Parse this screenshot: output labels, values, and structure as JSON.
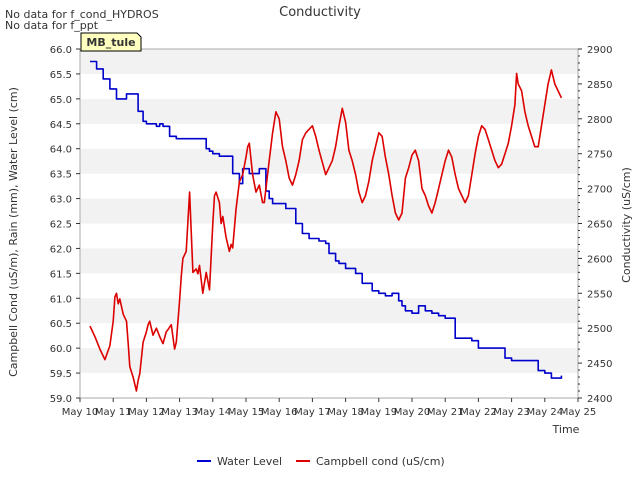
{
  "notes": [
    "No data for f_cond_HYDROS",
    "No data for f_ppt"
  ],
  "badge": "MB_tule",
  "chart_data": {
    "type": "line",
    "title": "Conductivity",
    "xlabel": "Time",
    "ylabel_left": "Campbell Cond (uS/m), Rain (mm), Water Level (cm)",
    "ylabel_right": "Conductivity (uS/cm)",
    "x_ticks": [
      "May 10",
      "May 11",
      "May 12",
      "May 13",
      "May 14",
      "May 15",
      "May 16",
      "May 17",
      "May 18",
      "May 19",
      "May 20",
      "May 21",
      "May 22",
      "May 23",
      "May 24",
      "May 25"
    ],
    "xlim": [
      10,
      25
    ],
    "ylim_left": [
      59.0,
      66.0
    ],
    "y_ticks_left": [
      "59.0",
      "59.5",
      "60.0",
      "60.5",
      "61.0",
      "61.5",
      "62.0",
      "62.5",
      "63.0",
      "63.5",
      "64.0",
      "64.5",
      "65.0",
      "65.5",
      "66.0"
    ],
    "ylim_right": [
      2400,
      2900
    ],
    "y_ticks_right": [
      "2400",
      "2450",
      "2500",
      "2550",
      "2600",
      "2650",
      "2700",
      "2750",
      "2800",
      "2850",
      "2900"
    ],
    "grid_bands": true,
    "legend_position": "bottom-center",
    "series": [
      {
        "name": "Water Level",
        "color": "#0000cc",
        "axis": "left",
        "x": [
          10.3,
          10.5,
          10.7,
          10.9,
          11.1,
          11.2,
          11.4,
          11.5,
          11.75,
          11.9,
          12.0,
          12.3,
          12.4,
          12.5,
          12.7,
          12.9,
          13.0,
          13.5,
          13.8,
          13.9,
          14.0,
          14.2,
          14.6,
          14.8,
          14.9,
          15.1,
          15.2,
          15.4,
          15.6,
          15.7,
          15.8,
          16.0,
          16.2,
          16.5,
          16.7,
          16.9,
          17.0,
          17.2,
          17.4,
          17.5,
          17.7,
          17.8,
          18.0,
          18.3,
          18.5,
          18.8,
          19.0,
          19.2,
          19.4,
          19.6,
          19.7,
          19.8,
          20.0,
          20.2,
          20.4,
          20.6,
          20.8,
          21.0,
          21.3,
          21.4,
          21.6,
          21.8,
          22.0,
          22.2,
          22.5,
          22.8,
          23.0,
          23.2,
          23.5,
          23.8,
          24.0,
          24.2,
          24.5
        ],
        "y": [
          65.75,
          65.6,
          65.4,
          65.2,
          65.0,
          65.0,
          65.1,
          65.1,
          64.75,
          64.55,
          64.5,
          64.45,
          64.5,
          64.45,
          64.25,
          64.2,
          64.2,
          64.2,
          64.0,
          63.95,
          63.9,
          63.85,
          63.5,
          63.3,
          63.6,
          63.5,
          63.5,
          63.6,
          63.15,
          63.0,
          62.9,
          62.9,
          62.8,
          62.5,
          62.3,
          62.2,
          62.2,
          62.15,
          62.1,
          61.9,
          61.75,
          61.7,
          61.6,
          61.5,
          61.3,
          61.15,
          61.1,
          61.05,
          61.1,
          60.95,
          60.85,
          60.75,
          60.7,
          60.85,
          60.75,
          60.7,
          60.65,
          60.6,
          60.2,
          60.2,
          60.2,
          60.15,
          60.0,
          60.0,
          60.0,
          59.8,
          59.75,
          59.75,
          59.75,
          59.55,
          59.5,
          59.4,
          59.45
        ]
      },
      {
        "name": "Campbell cond (uS/cm)",
        "color": "#dd0000",
        "axis": "right",
        "x": [
          10.3,
          10.45,
          10.6,
          10.75,
          10.9,
          11.0,
          11.05,
          11.1,
          11.15,
          11.2,
          11.3,
          11.4,
          11.45,
          11.5,
          11.6,
          11.7,
          11.75,
          11.8,
          11.9,
          12.0,
          12.05,
          12.1,
          12.2,
          12.3,
          12.4,
          12.5,
          12.6,
          12.65,
          12.75,
          12.85,
          12.9,
          13.0,
          13.05,
          13.1,
          13.2,
          13.3,
          13.4,
          13.5,
          13.55,
          13.6,
          13.7,
          13.8,
          13.9,
          14.0,
          14.05,
          14.1,
          14.2,
          14.25,
          14.3,
          14.4,
          14.5,
          14.55,
          14.6,
          14.7,
          14.8,
          14.9,
          15.0,
          15.05,
          15.1,
          15.2,
          15.3,
          15.4,
          15.5,
          15.55,
          15.6,
          15.7,
          15.8,
          15.9,
          16.0,
          16.1,
          16.2,
          16.3,
          16.4,
          16.5,
          16.6,
          16.7,
          16.8,
          17.0,
          17.1,
          17.2,
          17.4,
          17.5,
          17.6,
          17.7,
          17.8,
          17.9,
          18.0,
          18.1,
          18.2,
          18.3,
          18.4,
          18.5,
          18.6,
          18.7,
          18.8,
          19.0,
          19.1,
          19.2,
          19.3,
          19.4,
          19.5,
          19.6,
          19.7,
          19.8,
          19.9,
          20.0,
          20.1,
          20.2,
          20.25,
          20.3,
          20.4,
          20.5,
          20.6,
          20.7,
          20.8,
          20.9,
          21.0,
          21.1,
          21.2,
          21.3,
          21.4,
          21.5,
          21.6,
          21.7,
          21.8,
          21.9,
          22.0,
          22.1,
          22.2,
          22.3,
          22.4,
          22.5,
          22.6,
          22.7,
          22.8,
          22.9,
          23.0,
          23.1,
          23.15,
          23.2,
          23.3,
          23.4,
          23.5,
          23.6,
          23.7,
          23.8,
          23.9,
          24.0,
          24.1,
          24.2,
          24.3,
          24.4,
          24.5
        ],
        "y": [
          2503,
          2488,
          2470,
          2455,
          2475,
          2510,
          2545,
          2550,
          2535,
          2542,
          2520,
          2510,
          2480,
          2445,
          2430,
          2410,
          2425,
          2435,
          2480,
          2495,
          2505,
          2510,
          2490,
          2500,
          2488,
          2478,
          2495,
          2498,
          2505,
          2470,
          2480,
          2540,
          2575,
          2600,
          2610,
          2695,
          2580,
          2585,
          2578,
          2590,
          2550,
          2580,
          2555,
          2650,
          2690,
          2695,
          2680,
          2650,
          2660,
          2630,
          2610,
          2620,
          2615,
          2670,
          2710,
          2720,
          2745,
          2760,
          2765,
          2720,
          2695,
          2705,
          2680,
          2680,
          2700,
          2740,
          2780,
          2810,
          2800,
          2760,
          2740,
          2715,
          2705,
          2720,
          2740,
          2770,
          2780,
          2790,
          2775,
          2755,
          2720,
          2730,
          2740,
          2760,
          2790,
          2815,
          2795,
          2755,
          2740,
          2720,
          2695,
          2680,
          2690,
          2710,
          2740,
          2780,
          2775,
          2745,
          2720,
          2690,
          2665,
          2655,
          2665,
          2715,
          2730,
          2748,
          2755,
          2740,
          2720,
          2700,
          2690,
          2675,
          2665,
          2680,
          2700,
          2720,
          2740,
          2755,
          2745,
          2720,
          2700,
          2690,
          2680,
          2690,
          2720,
          2750,
          2775,
          2790,
          2785,
          2770,
          2755,
          2740,
          2730,
          2735,
          2750,
          2765,
          2790,
          2820,
          2865,
          2850,
          2840,
          2810,
          2790,
          2775,
          2760,
          2760,
          2790,
          2820,
          2850,
          2870,
          2850,
          2840,
          2830
        ]
      }
    ]
  }
}
